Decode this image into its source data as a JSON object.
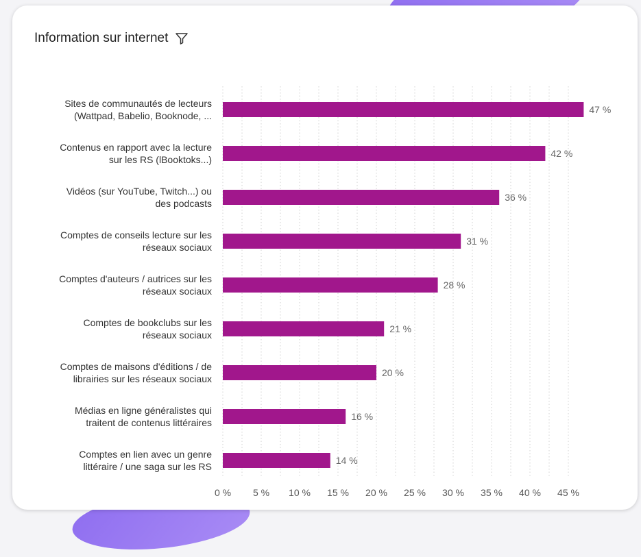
{
  "header": {
    "title": "Information sur internet",
    "filter_icon": "filter-icon"
  },
  "colors": {
    "bar": "#a1178c",
    "accent_blob": "#9a7af2"
  },
  "chart_data": {
    "type": "bar",
    "orientation": "horizontal",
    "title": "Information sur internet",
    "xlabel": "",
    "ylabel": "",
    "xlim": [
      0,
      47
    ],
    "grid": true,
    "legend": "none",
    "categories": [
      [
        "Sites de communautés de lecteurs",
        "(Wattpad, Babelio, Booknode, ..."
      ],
      [
        "Contenus en rapport avec la lecture",
        "sur les RS (lBooktoks...)"
      ],
      [
        "Vidéos (sur YouTube, Twitch...) ou",
        "des podcasts"
      ],
      [
        "Comptes de conseils lecture sur les",
        "réseaux sociaux"
      ],
      [
        "Comptes d'auteurs / autrices sur les",
        "réseaux sociaux"
      ],
      [
        "Comptes de bookclubs sur les",
        "réseaux sociaux"
      ],
      [
        "Comptes de maisons d'éditions / de",
        "librairies sur les réseaux sociaux"
      ],
      [
        "Médias en ligne généralistes qui",
        "traitent de contenus littéraires"
      ],
      [
        "Comptes en lien avec un genre",
        "littéraire / une saga sur les RS"
      ]
    ],
    "values": [
      47,
      42,
      36,
      31,
      28,
      21,
      20,
      16,
      14
    ],
    "value_labels": [
      "47 %",
      "42 %",
      "36 %",
      "31 %",
      "28 %",
      "21 %",
      "20 %",
      "16 %",
      "14 %"
    ],
    "ticks": [
      0,
      5,
      10,
      15,
      20,
      25,
      30,
      35,
      40,
      45
    ],
    "tick_labels": [
      "0 %",
      "5 %",
      "10 %",
      "15 %",
      "20 %",
      "25 %",
      "30 %",
      "35 %",
      "40 %",
      "45 %"
    ]
  }
}
